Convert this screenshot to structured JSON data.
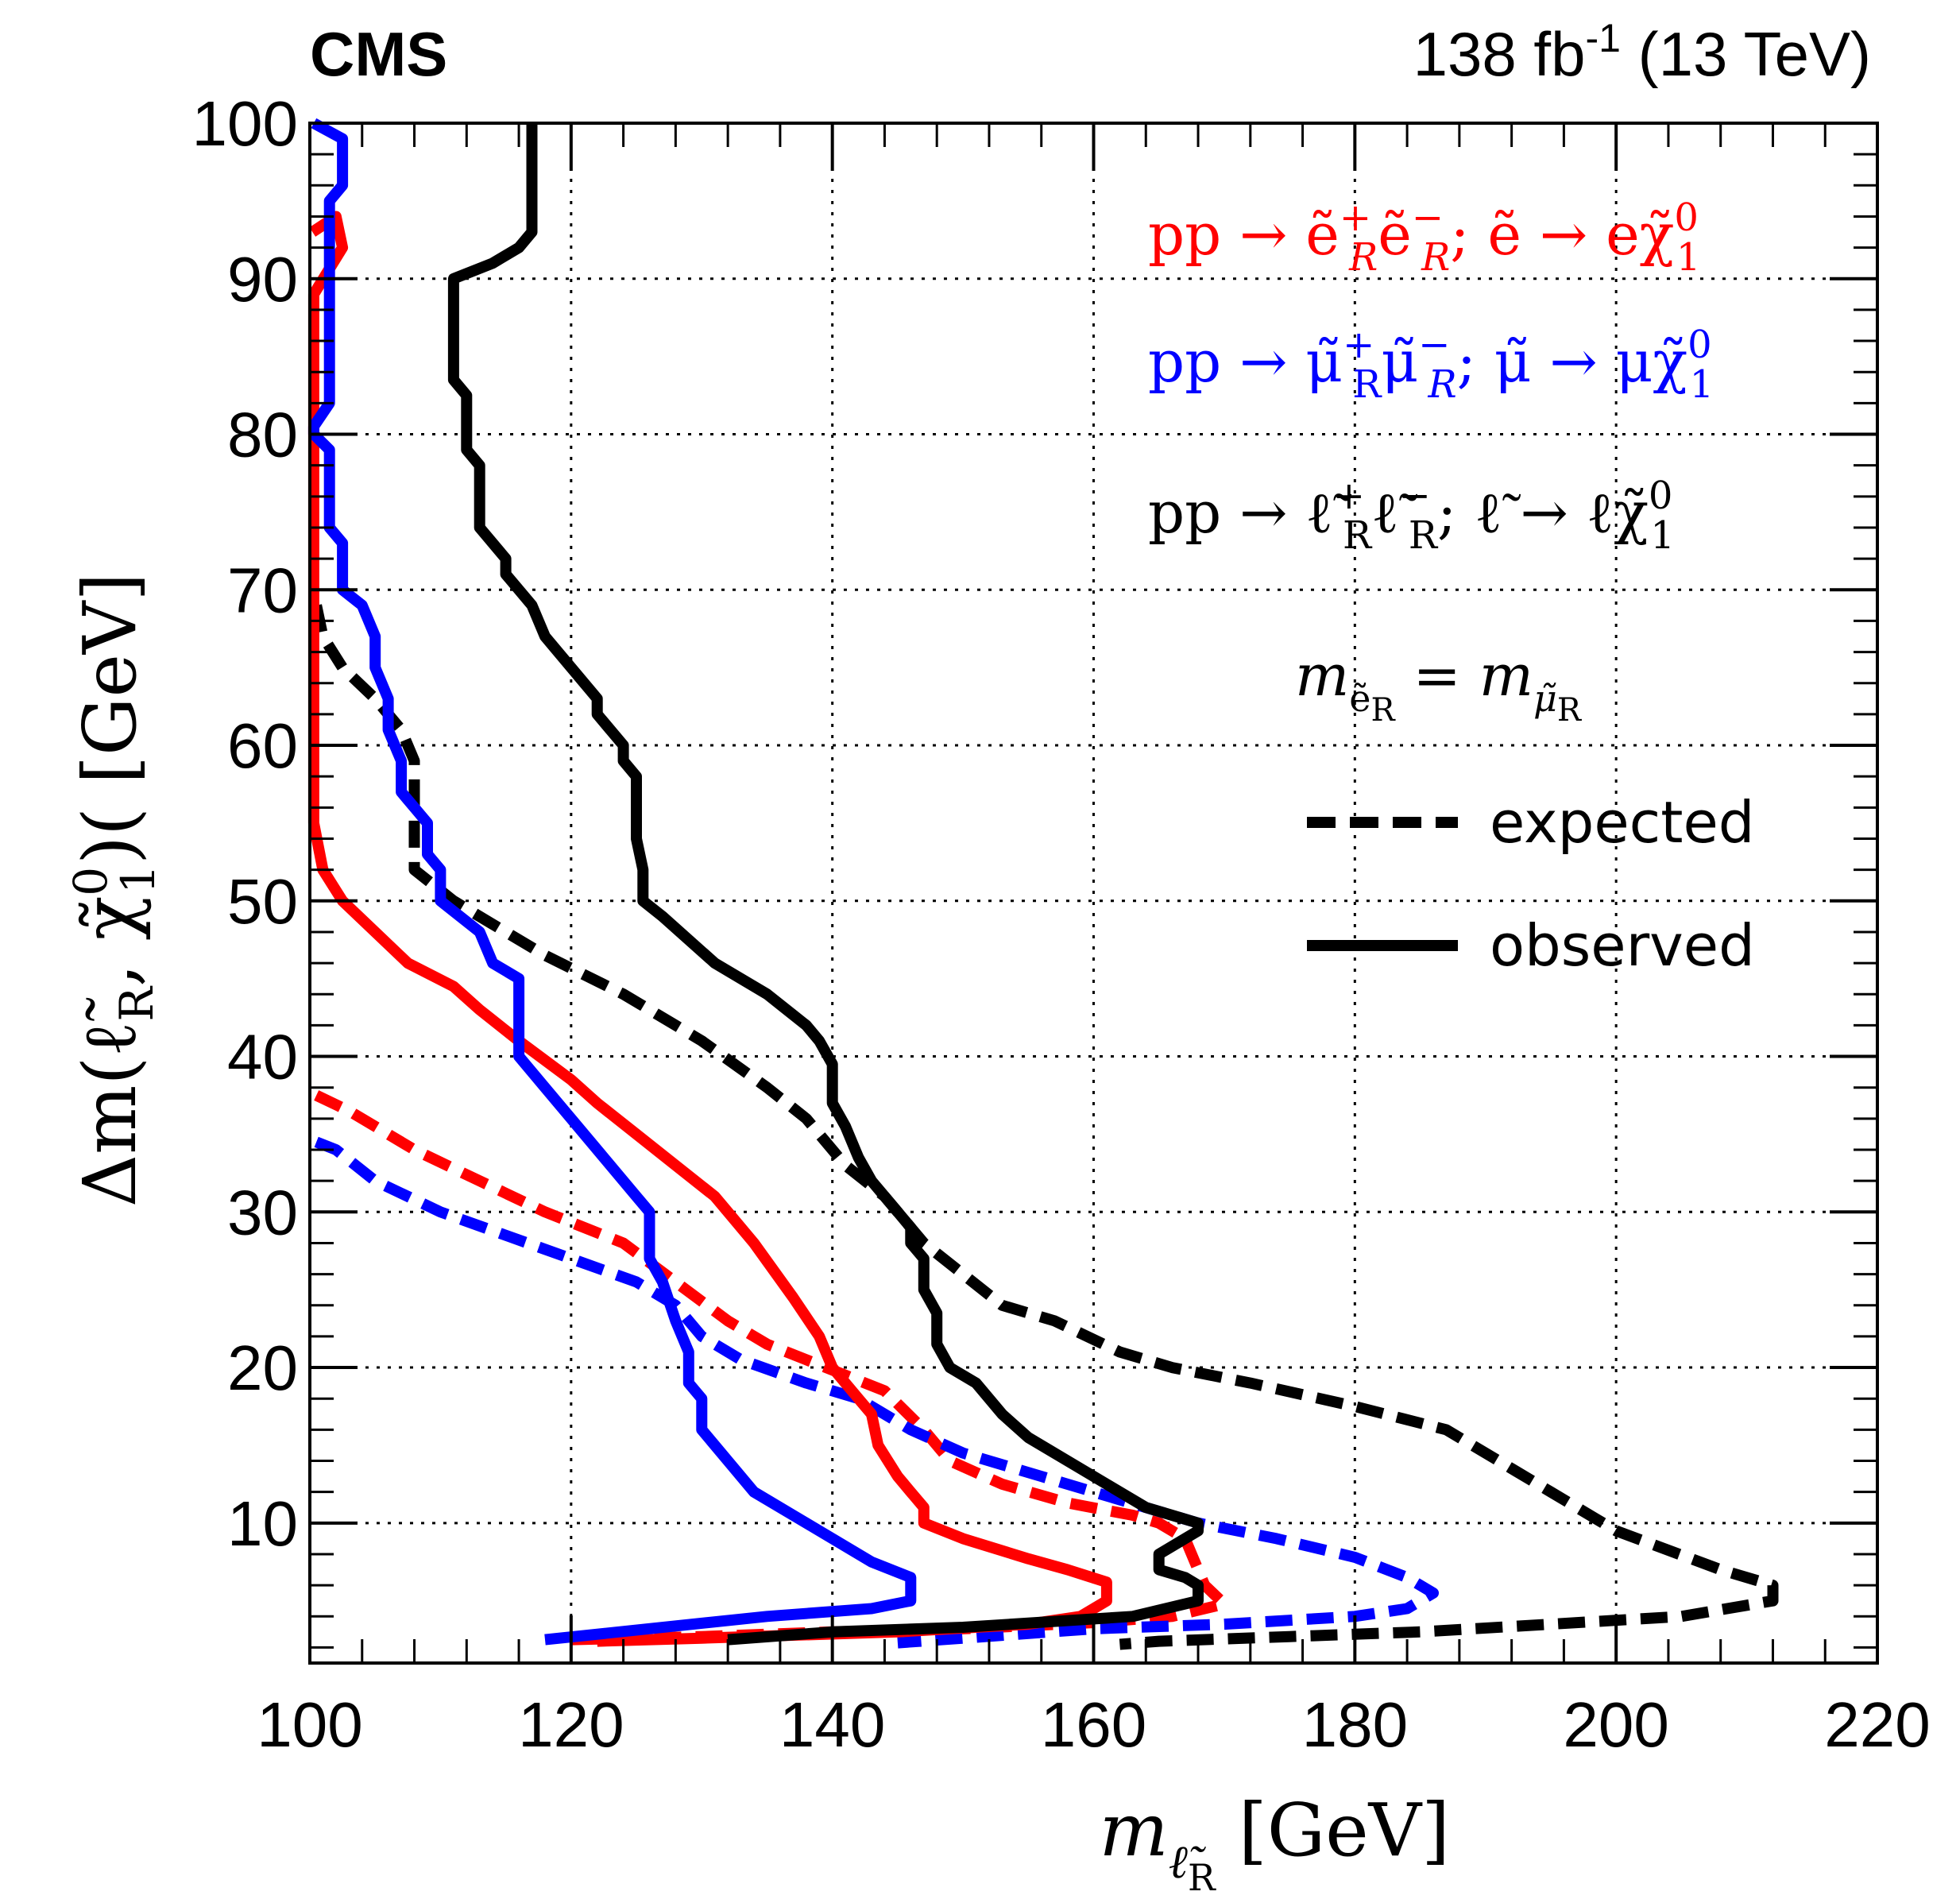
{
  "header": {
    "experiment": "CMS",
    "lumi_value": "138 fb",
    "lumi_exp": "-1",
    "energy": " (13 TeV)"
  },
  "legend": {
    "electron": {
      "base": "pp → ẽ",
      "sup1": "+",
      "sub1": "R",
      "mid": "ẽ",
      "sup2": "−",
      "sub2": "R",
      "tail": "; ẽ → eχ̃",
      "sup3": "0",
      "sub3": "1"
    },
    "muon": {
      "base": "pp → μ̃",
      "sup1": "+",
      "sub1": "R",
      "mid": "μ̃",
      "sup2": "−",
      "sub2": "R",
      "tail": "; μ̃ → μχ̃",
      "sup3": "0",
      "sub3": "1"
    },
    "combined": {
      "base": "pp → ℓ̃",
      "sup1": "+",
      "sub1": "R",
      "mid": "ℓ̃",
      "sup2": "−",
      "sub2": "R",
      "tail": "; ℓ̃ → ℓχ̃",
      "sup3": "0",
      "sub3": "1"
    },
    "mass_cond": {
      "lhs": "m",
      "lhs_sub": "ẽ",
      "lhs_subsub": "R",
      "eq": " = m",
      "rhs_sub": "μ̃",
      "rhs_subsub": "R"
    },
    "expected": "expected",
    "observed": "observed"
  },
  "chart_data": {
    "type": "line",
    "xlabel": {
      "main": "m",
      "sub": "ℓ̃",
      "subsub": "R",
      "unit": " [GeV]"
    },
    "ylabel": {
      "pre": "Δm(ℓ̃",
      "sub1": "R",
      "mid": ", χ̃",
      "sup": "0",
      "sub2": "1",
      "post": ")( [GeV]"
    },
    "xlim": [
      100,
      220
    ],
    "ylim": [
      1,
      100
    ],
    "grid": true,
    "x_ticks": [
      "100",
      "120",
      "140",
      "160",
      "180",
      "200",
      "220"
    ],
    "y_ticks": [
      "10",
      "20",
      "30",
      "40",
      "50",
      "60",
      "70",
      "80",
      "90",
      "100"
    ],
    "colors": {
      "electron": "#ff0000",
      "muon": "#0000ff",
      "combined": "#000000"
    },
    "series": [
      {
        "name": "pp → ẽRẽR; ẽ → eχ̃1 0 — observed",
        "color": "#ff0000",
        "style": "solid",
        "points": [
          [
            100.2,
            93
          ],
          [
            102,
            94
          ],
          [
            102.5,
            92
          ],
          [
            100.3,
            89
          ],
          [
            100.3,
            88
          ],
          [
            100.3,
            55
          ],
          [
            101,
            52
          ],
          [
            102.5,
            50
          ],
          [
            105,
            48
          ],
          [
            107.5,
            46
          ],
          [
            111,
            44.5
          ],
          [
            113,
            43
          ],
          [
            116,
            41
          ],
          [
            120,
            38.5
          ],
          [
            122,
            37
          ],
          [
            125,
            35
          ],
          [
            128,
            33
          ],
          [
            131,
            31
          ],
          [
            134,
            28
          ],
          [
            137,
            24.5
          ],
          [
            139,
            22
          ],
          [
            140,
            20
          ],
          [
            142,
            18
          ],
          [
            143,
            17
          ],
          [
            143.5,
            15
          ],
          [
            145,
            13
          ],
          [
            146,
            12
          ],
          [
            147,
            11
          ],
          [
            147,
            10
          ],
          [
            150,
            9
          ],
          [
            155,
            7.7
          ],
          [
            158,
            7
          ],
          [
            161,
            6.2
          ],
          [
            161,
            5
          ],
          [
            159,
            4
          ],
          [
            155,
            3.5
          ],
          [
            145,
            3
          ],
          [
            130,
            2.6
          ],
          [
            122,
            2.4
          ]
        ]
      },
      {
        "name": "pp → ẽRẽR; ẽ → eχ̃1 0 — expected",
        "color": "#ff0000",
        "style": "dashed",
        "points": [
          [
            100.5,
            37.5
          ],
          [
            103,
            36.5
          ],
          [
            108,
            34
          ],
          [
            113,
            32
          ],
          [
            118,
            30
          ],
          [
            124,
            28
          ],
          [
            128,
            25.5
          ],
          [
            132,
            23
          ],
          [
            135,
            21.5
          ],
          [
            138,
            20.5
          ],
          [
            141,
            19.5
          ],
          [
            144,
            18.5
          ],
          [
            147,
            16
          ],
          [
            149,
            14
          ],
          [
            153,
            12.5
          ],
          [
            158,
            11.3
          ],
          [
            163,
            10.5
          ],
          [
            165,
            10
          ],
          [
            167,
            9
          ],
          [
            168,
            7
          ],
          [
            168.5,
            6
          ],
          [
            170,
            4.8
          ],
          [
            166,
            4
          ],
          [
            160,
            3.6
          ],
          [
            150,
            3.2
          ],
          [
            140,
            3
          ],
          [
            130,
            2.7
          ],
          [
            120,
            2.5
          ]
        ]
      },
      {
        "name": "pp → μ̃Rμ̃R; μ̃ → μχ̃1 0 — observed",
        "color": "#0000ff",
        "style": "solid",
        "points": [
          [
            100.3,
            100
          ],
          [
            102.5,
            99
          ],
          [
            102.5,
            96
          ],
          [
            101.5,
            95
          ],
          [
            101.5,
            82
          ],
          [
            100.3,
            80.5
          ],
          [
            100.3,
            80
          ],
          [
            101.5,
            79
          ],
          [
            101.5,
            74
          ],
          [
            102.5,
            73
          ],
          [
            102.5,
            70
          ],
          [
            104,
            69
          ],
          [
            105,
            67
          ],
          [
            105,
            65
          ],
          [
            106,
            63
          ],
          [
            106,
            61
          ],
          [
            107,
            59
          ],
          [
            107,
            57
          ],
          [
            108,
            56
          ],
          [
            109,
            55
          ],
          [
            109,
            53
          ],
          [
            110,
            52
          ],
          [
            110,
            50
          ],
          [
            113,
            48
          ],
          [
            114,
            46
          ],
          [
            116,
            45
          ],
          [
            116,
            43
          ],
          [
            116,
            40
          ],
          [
            118,
            38
          ],
          [
            120,
            36
          ],
          [
            123,
            33
          ],
          [
            125,
            31
          ],
          [
            126,
            30
          ],
          [
            126,
            27
          ],
          [
            127,
            25.5
          ],
          [
            128,
            23
          ],
          [
            129,
            21
          ],
          [
            129,
            19
          ],
          [
            130,
            18
          ],
          [
            130,
            16
          ],
          [
            132,
            14
          ],
          [
            134,
            12
          ],
          [
            137,
            10.5
          ],
          [
            140,
            9
          ],
          [
            143,
            7.5
          ],
          [
            146,
            6.5
          ],
          [
            146,
            5
          ],
          [
            143,
            4.5
          ],
          [
            135,
            4
          ],
          [
            118,
            2.5
          ]
        ]
      },
      {
        "name": "pp → μ̃Rμ̃R; μ̃ → μχ̃1 0 — expected",
        "color": "#0000ff",
        "style": "dashed",
        "points": [
          [
            100.5,
            34.5
          ],
          [
            102,
            34
          ],
          [
            105,
            32
          ],
          [
            110,
            30
          ],
          [
            115,
            28.5
          ],
          [
            120,
            27
          ],
          [
            125,
            25.5
          ],
          [
            128,
            24
          ],
          [
            130,
            22
          ],
          [
            133,
            20.5
          ],
          [
            138,
            19
          ],
          [
            142,
            18
          ],
          [
            146,
            16
          ],
          [
            150,
            14.5
          ],
          [
            156,
            13
          ],
          [
            162,
            11.5
          ],
          [
            168,
            10
          ],
          [
            174,
            9
          ],
          [
            180,
            7.8
          ],
          [
            184,
            6.5
          ],
          [
            186,
            5.5
          ],
          [
            184,
            4.5
          ],
          [
            180,
            4
          ],
          [
            170,
            3.5
          ],
          [
            160,
            3.2
          ],
          [
            150,
            2.6
          ],
          [
            145,
            2.3
          ]
        ]
      },
      {
        "name": "pp → ℓ̃Rℓ̃R; ℓ̃ → ℓχ̃1 0 — observed",
        "color": "#000000",
        "style": "solid",
        "points": [
          [
            117,
            100
          ],
          [
            117,
            93
          ],
          [
            116,
            92
          ],
          [
            114,
            91
          ],
          [
            111,
            90
          ],
          [
            111,
            83.5
          ],
          [
            112,
            82.5
          ],
          [
            112,
            79
          ],
          [
            113,
            78
          ],
          [
            113,
            74
          ],
          [
            115,
            72
          ],
          [
            115,
            71
          ],
          [
            117,
            69
          ],
          [
            118,
            67
          ],
          [
            122,
            63
          ],
          [
            122,
            62
          ],
          [
            124,
            60
          ],
          [
            124,
            59
          ],
          [
            125,
            58
          ],
          [
            125,
            54
          ],
          [
            125.5,
            52
          ],
          [
            125.5,
            50
          ],
          [
            127,
            49
          ],
          [
            131,
            46
          ],
          [
            135,
            44
          ],
          [
            138,
            42
          ],
          [
            139,
            41
          ],
          [
            140,
            39.5
          ],
          [
            140,
            37
          ],
          [
            141,
            35.5
          ],
          [
            142,
            33.5
          ],
          [
            143,
            32
          ],
          [
            145,
            30
          ],
          [
            146,
            29
          ],
          [
            146,
            28
          ],
          [
            147,
            27
          ],
          [
            147,
            25
          ],
          [
            148,
            23.5
          ],
          [
            148,
            21.5
          ],
          [
            149,
            20
          ],
          [
            151,
            19
          ],
          [
            153,
            17
          ],
          [
            155,
            15.5
          ],
          [
            158,
            14
          ],
          [
            162,
            12
          ],
          [
            164,
            11
          ],
          [
            166,
            10.5
          ],
          [
            168,
            10
          ],
          [
            168,
            9.5
          ],
          [
            167,
            9
          ],
          [
            165,
            8
          ],
          [
            165,
            7
          ],
          [
            167,
            6.5
          ],
          [
            168,
            6
          ],
          [
            168,
            5
          ],
          [
            163,
            4
          ],
          [
            150,
            3.3
          ],
          [
            140,
            3
          ],
          [
            132,
            2.5
          ]
        ]
      },
      {
        "name": "pp → ℓ̃Rℓ̃R; ℓ̃ → ℓχ̃1 0 — expected",
        "color": "#000000",
        "style": "dashed",
        "points": [
          [
            100.5,
            69
          ],
          [
            101,
            67
          ],
          [
            102.5,
            65
          ],
          [
            105,
            63
          ],
          [
            107,
            61
          ],
          [
            108,
            59
          ],
          [
            108,
            57
          ],
          [
            108,
            55
          ],
          [
            108,
            52
          ],
          [
            111,
            50
          ],
          [
            114,
            48.5
          ],
          [
            118,
            46.5
          ],
          [
            124,
            44
          ],
          [
            130,
            41
          ],
          [
            135,
            38
          ],
          [
            138,
            36
          ],
          [
            141,
            33
          ],
          [
            144,
            31
          ],
          [
            147,
            28
          ],
          [
            150,
            26
          ],
          [
            153,
            24
          ],
          [
            157,
            23
          ],
          [
            162,
            21
          ],
          [
            166,
            20
          ],
          [
            172,
            19
          ],
          [
            180,
            17.5
          ],
          [
            187,
            16
          ],
          [
            191,
            14
          ],
          [
            195,
            12
          ],
          [
            200,
            9.5
          ],
          [
            208,
            7
          ],
          [
            212,
            6
          ],
          [
            212,
            5
          ],
          [
            205,
            4
          ],
          [
            195,
            3.5
          ],
          [
            185,
            3
          ],
          [
            175,
            2.7
          ],
          [
            165,
            2.4
          ],
          [
            162,
            2.2
          ]
        ]
      }
    ]
  }
}
